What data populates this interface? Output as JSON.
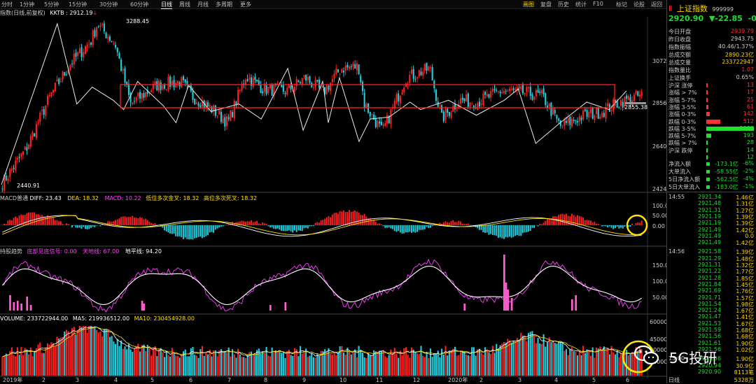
{
  "toolbar": {
    "periods": [
      "分时",
      "1分钟",
      "5分钟",
      "15分钟",
      "30分钟",
      "60分钟",
      "日线",
      "周线",
      "月线",
      "多周期",
      "更多"
    ],
    "active_period": "日线",
    "right_buttons": [
      "画图",
      "复盘",
      "历史",
      "统计",
      "F10",
      "标记",
      "论股",
      "返回"
    ],
    "highlight_button": "画图"
  },
  "info": {
    "title": "指数(日线,前复权)",
    "kktb_label": "KKTB : 2912.19",
    "kktb_arrow": "↓"
  },
  "main_chart": {
    "high_label": "3288.45",
    "low_label": "2440.91",
    "last_label": "2855.38",
    "y_ticks": [
      "3072",
      "2856",
      "2640",
      "2424"
    ],
    "box_color": "#ff2020"
  },
  "macd": {
    "title": "MACD普通",
    "diff": "DIFF: 23.43",
    "dea": "DEA: 18.32",
    "macd": "MACD: 10.22",
    "x1": "低位多次金叉: 18.32",
    "x2": "高位多次死叉: 18.32",
    "y_ticks": [
      "100.0",
      "50.00",
      "0.00"
    ]
  },
  "kdj": {
    "title": "持股趋势",
    "a": "底部见底信号: 0.00",
    "b": "天地线: 67.00",
    "c": "地平线: 94.20",
    "y_ticks": [
      "150.0",
      "100.0",
      "50.00"
    ]
  },
  "volume": {
    "vol": "VOLUME: 233722944.00",
    "ma5": "MA5: 219936512.00",
    "ma10": "MA10: 230454928.00",
    "y_ticks": [
      "60000",
      "45000",
      "30000",
      "15000"
    ]
  },
  "x_labels": [
    "2019年",
    "2",
    "3",
    "4",
    "5",
    "6",
    "7",
    "8",
    "9",
    "10",
    "11",
    "12",
    "2020年",
    "2",
    "3",
    "4",
    "5",
    "6"
  ],
  "quote": {
    "flag": "Ⅱ",
    "name": "上证指数",
    "code": "999999",
    "price": "2920.90",
    "change": "▼-22.85",
    "pct": "-0.78%",
    "stats": [
      {
        "k": "今日开盘",
        "v": "2939.79",
        "c": "#ff3030"
      },
      {
        "k": "昨日收盘",
        "v": "2943.75",
        "c": "#cccccc"
      },
      {
        "k": "指数振幅",
        "v": "40.46/1.37%",
        "c": "#cccccc"
      },
      {
        "k": "总成交额",
        "v": "2890.23亿",
        "c": "#ffd700"
      },
      {
        "k": "总成交量",
        "v": "233722947",
        "c": "#ffd700"
      },
      {
        "k": "指数量比",
        "v": "1.07",
        "c": "#ff3030"
      },
      {
        "k": "上证换手",
        "v": "0.65%",
        "c": "#cccccc"
      }
    ],
    "breadth_title": "沪深 涨停",
    "breadth": [
      {
        "k": "沪深 涨停",
        "v": "13",
        "c": "#ff3030",
        "w": 0.02
      },
      {
        "k": "涨幅 > 7%",
        "v": "17",
        "c": "#ff3030",
        "w": 0.02
      },
      {
        "k": "涨幅 5-7%",
        "v": "25",
        "c": "#ff3030",
        "w": 0.03
      },
      {
        "k": "涨幅 3-5%",
        "v": "61",
        "c": "#ff3030",
        "w": 0.04
      },
      {
        "k": "涨幅 0-3%",
        "v": "142",
        "c": "#ff3030",
        "w": 0.08
      },
      {
        "k": "跌幅 0-3%",
        "v": "512",
        "c": "#ff3030",
        "w": 0.3
      },
      {
        "k": "跌幅 3-5%",
        "v": "2253",
        "c": "#20dd30",
        "w": 1.0
      },
      {
        "k": "跌幅 5-7%",
        "v": "193",
        "c": "#20dd30",
        "w": 0.1
      },
      {
        "k": "跌幅 > 7%",
        "v": "28",
        "c": "#20dd30",
        "w": 0.03
      },
      {
        "k": "沪深 跌停",
        "v": "14",
        "c": "#20dd30",
        "w": 0.02
      },
      {
        "k": "",
        "v": "12",
        "c": "#20dd30",
        "w": 0.02
      }
    ],
    "flows": [
      {
        "k": "净流入额",
        "v": "-173.1亿",
        "p": "-6%"
      },
      {
        "k": "大单流入",
        "v": "-58.55亿",
        "p": "-2%"
      },
      {
        "k": "5日净流入额",
        "v": "-562.5亿",
        "p": "-4%"
      },
      {
        "k": "5日大单流入",
        "v": "-183.0亿",
        "p": "-1%"
      }
    ]
  },
  "ticks": [
    {
      "time": "14:55",
      "rows": [
        [
          "2921.34",
          "1.46亿"
        ],
        [
          "2921.48",
          "1.31亿"
        ],
        [
          "2921.31",
          "1.27亿"
        ],
        [
          "2921.19",
          "1.39亿"
        ],
        [
          "2921.19",
          "1.39亿"
        ],
        [
          "2921.49",
          "1.42亿"
        ],
        [
          "2921.49",
          "0.0"
        ],
        [
          "2921.49",
          "1.42亿"
        ]
      ]
    },
    {
      "time": "14:56",
      "rows": [
        [
          "2921.58",
          "1.39亿"
        ],
        [
          "2921.29",
          "1.48亿"
        ],
        [
          "2921.31",
          "1.32亿"
        ],
        [
          "2921.22",
          "1.77亿"
        ],
        [
          "2921.28",
          "1.85亿"
        ],
        [
          "2921.84",
          "1.45亿"
        ],
        [
          "2921.69",
          "1.76亿"
        ],
        [
          "2921.71",
          "1.57亿"
        ],
        [
          "2921.54",
          "1.98亿"
        ],
        [
          "2921.24",
          "1.67亿"
        ],
        [
          "2921.47",
          "1.41亿"
        ],
        [
          "2921.53",
          "1.67亿"
        ],
        [
          "2921.59",
          "1.68亿"
        ],
        [
          "2921.56",
          "1.68亿"
        ],
        [
          "2921.61",
          "1.90亿"
        ],
        [
          "2921.56",
          "1.02亿"
        ]
      ]
    },
    {
      "time": "15:00",
      "rows": [
        [
          "2921.56",
          "1.90亿"
        ],
        [
          "2920.94",
          "30.9亿"
        ],
        [
          "2920.90",
          "8113笔"
        ]
      ]
    }
  ],
  "footer_right": [
    "日线",
    "5328万"
  ],
  "watermark": "5G投研",
  "colors": {
    "up": "#ff2020",
    "down": "#20d0e0",
    "yellow": "#ffe000",
    "magenta": "#ff40ff",
    "white": "#ffffff",
    "circle": "#ffe600"
  }
}
